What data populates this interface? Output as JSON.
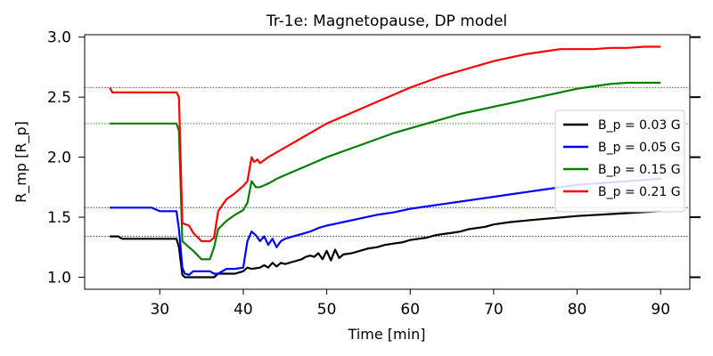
{
  "chart_data": {
    "type": "line",
    "title": "Tr-1e: Magnetopause, DP model",
    "xlabel": "Time [min]",
    "ylabel": "R_mp [R_p]",
    "xlim": [
      21,
      93.5
    ],
    "ylim": [
      0.9,
      3.02
    ],
    "xticks": [
      30,
      40,
      50,
      60,
      70,
      80,
      90
    ],
    "yticks": [
      1.0,
      1.5,
      2.0,
      2.5,
      3.0
    ],
    "grid": false,
    "legend_position": "center-right",
    "series": [
      {
        "name": "B_p = 0.03 G",
        "legend_label": "B_p = 0.03 G",
        "color": "#000000",
        "x": [
          24,
          25,
          25.5,
          26,
          31,
          32,
          32.3,
          32.7,
          33,
          33.5,
          34,
          35,
          36.5,
          37,
          39,
          40,
          40.5,
          41,
          42,
          42.5,
          43,
          43.5,
          44,
          44.5,
          45,
          45.5,
          46,
          47,
          47.5,
          48,
          48.5,
          49,
          49.5,
          50,
          50.5,
          51,
          51.5,
          52,
          53,
          54,
          55,
          56,
          57,
          58,
          59,
          60,
          61,
          62,
          63,
          64,
          65,
          66,
          67,
          68,
          69,
          70,
          72,
          75,
          80,
          85,
          90
        ],
        "y": [
          1.34,
          1.34,
          1.32,
          1.32,
          1.32,
          1.32,
          1.25,
          1.02,
          1.0,
          1.0,
          1.0,
          1.0,
          1.0,
          1.03,
          1.03,
          1.05,
          1.08,
          1.07,
          1.08,
          1.1,
          1.08,
          1.12,
          1.09,
          1.12,
          1.11,
          1.12,
          1.13,
          1.15,
          1.17,
          1.18,
          1.17,
          1.2,
          1.15,
          1.22,
          1.14,
          1.23,
          1.16,
          1.19,
          1.2,
          1.22,
          1.24,
          1.25,
          1.27,
          1.28,
          1.29,
          1.31,
          1.32,
          1.33,
          1.35,
          1.36,
          1.37,
          1.38,
          1.4,
          1.41,
          1.42,
          1.44,
          1.46,
          1.48,
          1.51,
          1.53,
          1.55
        ]
      },
      {
        "name": "B_p = 0.05 G",
        "legend_label": "B_p = 0.05 G",
        "color": "#0000ff",
        "x": [
          24,
          29,
          30,
          32,
          32.3,
          32.7,
          33,
          33.5,
          34,
          36,
          36.5,
          37,
          38,
          39,
          40,
          40.5,
          41,
          41.5,
          42,
          42.5,
          43,
          43.5,
          44,
          44.5,
          45,
          46,
          47,
          48,
          49,
          50,
          52,
          54,
          56,
          58,
          60,
          62,
          64,
          66,
          68,
          70,
          72,
          74,
          76,
          78,
          80,
          82,
          84,
          86,
          88,
          90
        ],
        "y": [
          1.58,
          1.58,
          1.55,
          1.55,
          1.4,
          1.08,
          1.03,
          1.02,
          1.05,
          1.05,
          1.03,
          1.03,
          1.07,
          1.07,
          1.08,
          1.3,
          1.38,
          1.35,
          1.3,
          1.34,
          1.27,
          1.32,
          1.25,
          1.3,
          1.32,
          1.34,
          1.36,
          1.38,
          1.41,
          1.43,
          1.46,
          1.49,
          1.52,
          1.54,
          1.57,
          1.59,
          1.61,
          1.63,
          1.65,
          1.67,
          1.69,
          1.71,
          1.73,
          1.75,
          1.77,
          1.78,
          1.79,
          1.8,
          1.81,
          1.82
        ]
      },
      {
        "name": "B_p = 0.15 G",
        "legend_label": "B_p = 0.15 G",
        "color": "#008000",
        "x": [
          24,
          26,
          29,
          32,
          32.3,
          32.7,
          33,
          34,
          35,
          36,
          36.5,
          37,
          38,
          39,
          40,
          40.5,
          41,
          41.5,
          42,
          43,
          44,
          45,
          46,
          47,
          48,
          49,
          50,
          52,
          54,
          56,
          58,
          60,
          62,
          64,
          66,
          68,
          70,
          72,
          74,
          76,
          78,
          80,
          82,
          84,
          86,
          88,
          90
        ],
        "y": [
          2.28,
          2.28,
          2.28,
          2.28,
          2.22,
          1.3,
          1.28,
          1.22,
          1.15,
          1.15,
          1.25,
          1.4,
          1.47,
          1.52,
          1.56,
          1.62,
          1.8,
          1.75,
          1.75,
          1.78,
          1.82,
          1.85,
          1.88,
          1.91,
          1.94,
          1.97,
          2.0,
          2.05,
          2.1,
          2.15,
          2.2,
          2.24,
          2.28,
          2.32,
          2.36,
          2.39,
          2.42,
          2.45,
          2.48,
          2.51,
          2.54,
          2.57,
          2.59,
          2.61,
          2.62,
          2.62,
          2.62
        ]
      },
      {
        "name": "B_p = 0.21 G",
        "legend_label": "B_p = 0.21 G",
        "color": "#ff0000",
        "x": [
          24,
          24.3,
          26,
          29,
          32,
          32.3,
          32.7,
          33.5,
          34,
          35,
          36,
          36.5,
          37,
          38,
          39,
          40,
          40.5,
          41,
          41.3,
          41.7,
          42,
          43,
          44,
          45,
          46,
          47,
          48,
          49,
          50,
          52,
          54,
          56,
          58,
          60,
          62,
          64,
          66,
          68,
          70,
          72,
          74,
          76,
          78,
          80,
          82,
          84,
          86,
          88,
          90
        ],
        "y": [
          2.58,
          2.54,
          2.54,
          2.54,
          2.54,
          2.5,
          1.45,
          1.43,
          1.37,
          1.3,
          1.3,
          1.33,
          1.55,
          1.65,
          1.7,
          1.76,
          1.8,
          2.0,
          1.96,
          1.98,
          1.95,
          2.0,
          2.04,
          2.08,
          2.12,
          2.16,
          2.2,
          2.24,
          2.28,
          2.34,
          2.4,
          2.46,
          2.52,
          2.58,
          2.63,
          2.68,
          2.72,
          2.76,
          2.8,
          2.83,
          2.86,
          2.88,
          2.9,
          2.9,
          2.9,
          2.91,
          2.91,
          2.92,
          2.92
        ]
      }
    ],
    "reference_lines": [
      {
        "y": 2.58,
        "color": "#ff0000",
        "style": "dotted"
      },
      {
        "y": 2.28,
        "color": "#008000",
        "style": "dotted"
      },
      {
        "y": 1.58,
        "color": "#0000ff",
        "style": "dotted"
      },
      {
        "y": 1.34,
        "color": "#000000",
        "style": "dotted"
      }
    ]
  }
}
